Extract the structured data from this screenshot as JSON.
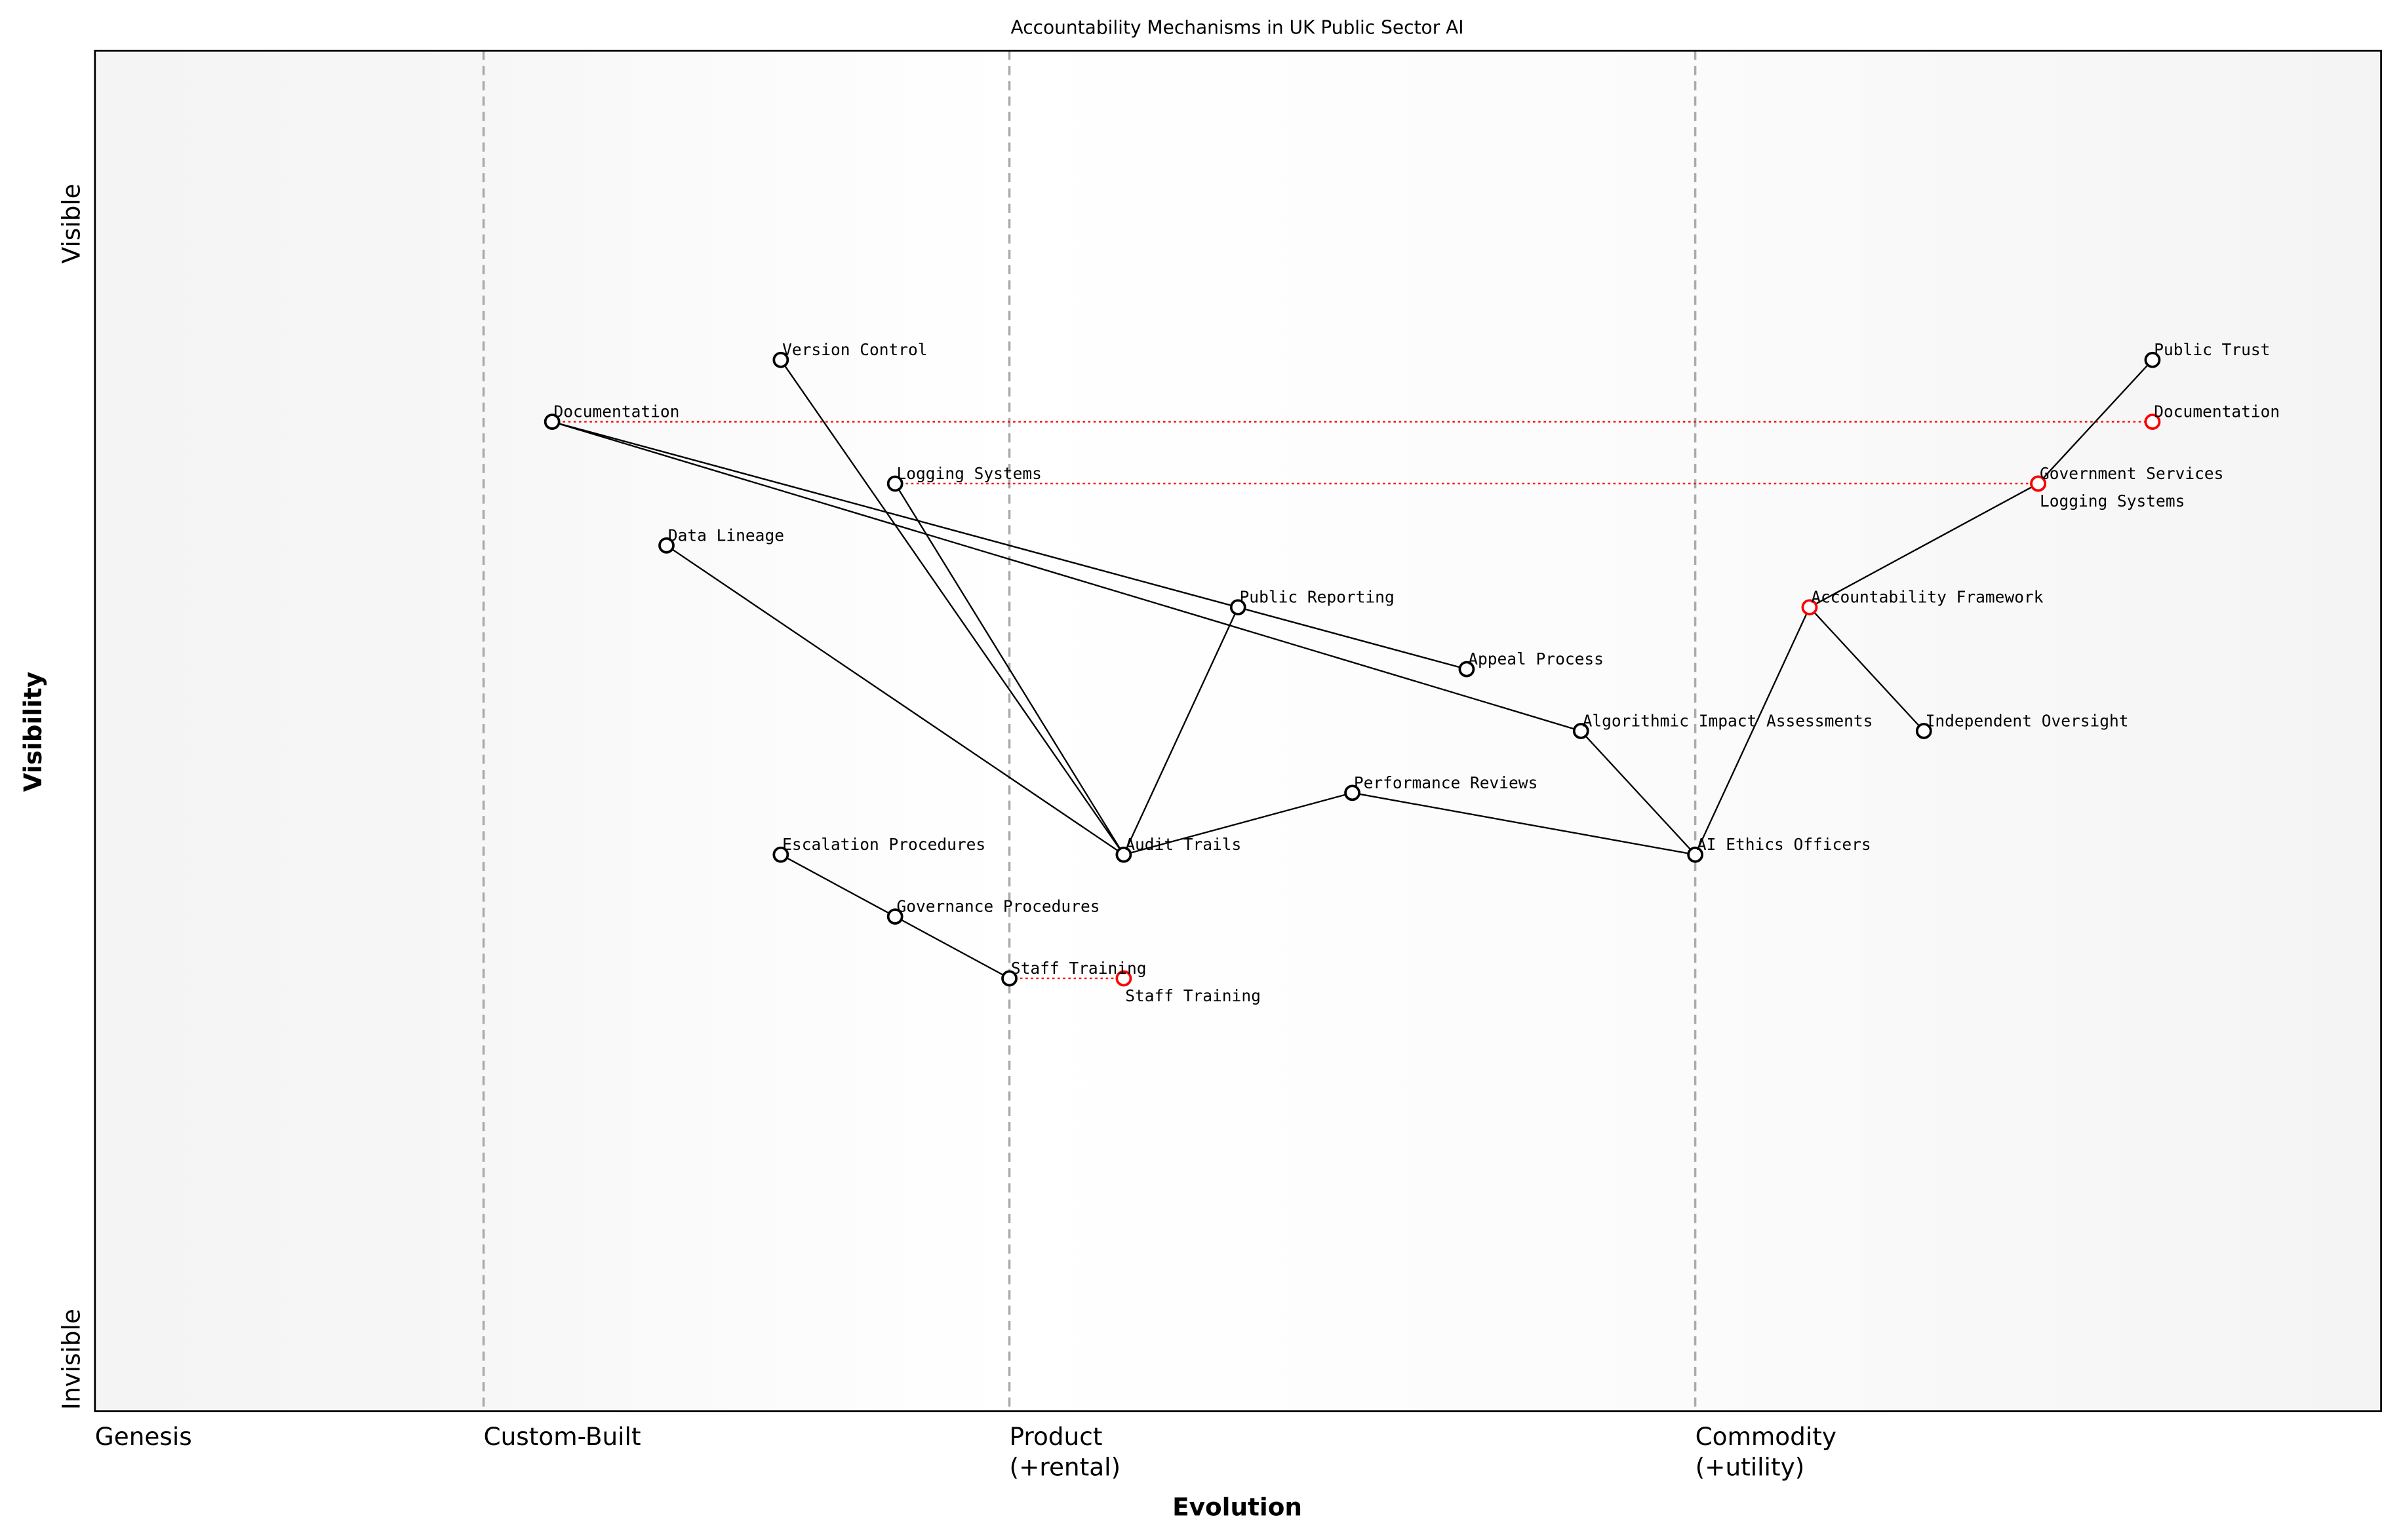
{
  "title": "Accountability Mechanisms in UK Public Sector AI",
  "x_axis": {
    "label": "Evolution",
    "range": [
      0,
      1
    ],
    "stages": [
      {
        "name": "Genesis",
        "line1": "Genesis",
        "line2": "",
        "at": 0.0
      },
      {
        "name": "Custom-Built",
        "line1": "Custom-Built",
        "line2": "",
        "at": 0.17
      },
      {
        "name": "Product",
        "line1": "Product",
        "line2": "(+rental)",
        "at": 0.4
      },
      {
        "name": "Commodity",
        "line1": "Commodity",
        "line2": "(+utility)",
        "at": 0.7
      }
    ]
  },
  "y_axis": {
    "label": "Visibility",
    "range": [
      -0.05,
      1.05
    ],
    "top_label": "Visible",
    "bottom_label": "Invisible"
  },
  "colors": {
    "node": "#000000",
    "evolved": "#ff0000",
    "divider": "#aaaaaa",
    "band_edge": "#f4f4f4",
    "band_mid": "#ffffff"
  },
  "components": [
    {
      "name": "Public Trust",
      "evolution": 0.9,
      "visibility": 0.8
    },
    {
      "name": "Government Services",
      "evolution": 0.85,
      "visibility": 0.7
    },
    {
      "name": "Accountability Framework",
      "evolution": 0.75,
      "visibility": 0.6,
      "highlight": true
    },
    {
      "name": "Independent Oversight",
      "evolution": 0.8,
      "visibility": 0.5
    },
    {
      "name": "AI Ethics Officers",
      "evolution": 0.7,
      "visibility": 0.4
    },
    {
      "name": "Algorithmic Impact Assessments",
      "evolution": 0.65,
      "visibility": 0.5
    },
    {
      "name": "Appeal Process",
      "evolution": 0.6,
      "visibility": 0.55
    },
    {
      "name": "Performance Reviews",
      "evolution": 0.55,
      "visibility": 0.45
    },
    {
      "name": "Public Reporting",
      "evolution": 0.5,
      "visibility": 0.6
    },
    {
      "name": "Audit Trails",
      "evolution": 0.45,
      "visibility": 0.4
    },
    {
      "name": "Staff Training",
      "evolution": 0.4,
      "visibility": 0.3
    },
    {
      "name": "Governance Procedures",
      "evolution": 0.35,
      "visibility": 0.35
    },
    {
      "name": "Escalation Procedures",
      "evolution": 0.3,
      "visibility": 0.4
    },
    {
      "name": "Logging Systems",
      "evolution": 0.35,
      "visibility": 0.7
    },
    {
      "name": "Version Control",
      "evolution": 0.3,
      "visibility": 0.8
    },
    {
      "name": "Data Lineage",
      "evolution": 0.25,
      "visibility": 0.65
    },
    {
      "name": "Documentation",
      "evolution": 0.2,
      "visibility": 0.75
    }
  ],
  "evolutions": [
    {
      "name": "Documentation",
      "from": 0.2,
      "to": 0.9,
      "visibility": 0.75
    },
    {
      "name": "Logging Systems",
      "from": 0.35,
      "to": 0.85,
      "visibility": 0.7
    },
    {
      "name": "Staff Training",
      "from": 0.4,
      "to": 0.45,
      "visibility": 0.3
    }
  ],
  "links": [
    [
      "Public Trust",
      "Government Services"
    ],
    [
      "Government Services",
      "Accountability Framework"
    ],
    [
      "Accountability Framework",
      "Independent Oversight"
    ],
    [
      "Accountability Framework",
      "AI Ethics Officers"
    ],
    [
      "AI Ethics Officers",
      "Algorithmic Impact Assessments"
    ],
    [
      "AI Ethics Officers",
      "Performance Reviews"
    ],
    [
      "Performance Reviews",
      "Audit Trails"
    ],
    [
      "Audit Trails",
      "Public Reporting"
    ],
    [
      "Audit Trails",
      "Version Control"
    ],
    [
      "Audit Trails",
      "Logging Systems"
    ],
    [
      "Audit Trails",
      "Data Lineage"
    ],
    [
      "Documentation",
      "Appeal Process"
    ],
    [
      "Documentation",
      "Algorithmic Impact Assessments"
    ],
    [
      "Escalation Procedures",
      "Governance Procedures"
    ],
    [
      "Governance Procedures",
      "Staff Training"
    ]
  ]
}
